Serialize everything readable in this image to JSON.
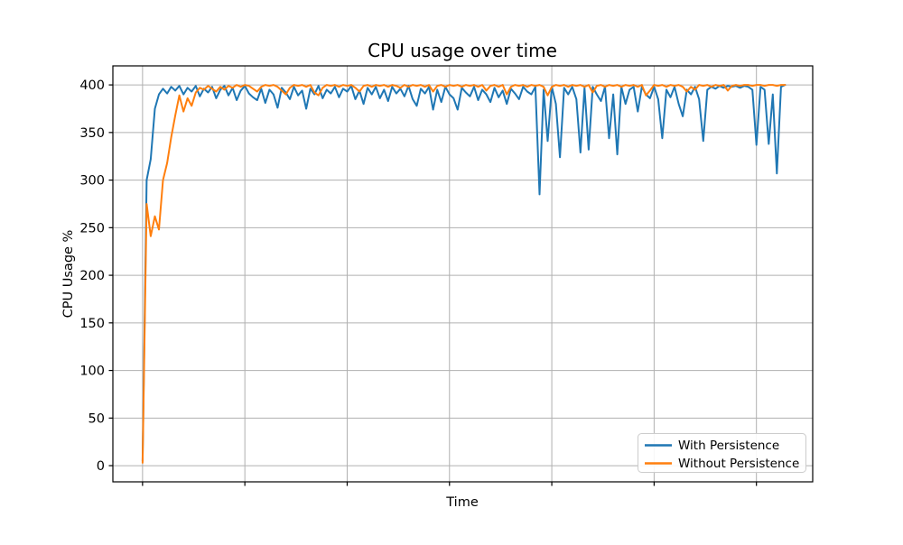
{
  "chart_data": {
    "type": "line",
    "title": "CPU usage over time",
    "xlabel": "Time",
    "ylabel": "CPU Usage %",
    "xlim": [
      -29,
      655
    ],
    "ylim": [
      -17,
      420
    ],
    "x_ticks": [
      0,
      100,
      200,
      300,
      400,
      500,
      600
    ],
    "x_tick_labels_visible": false,
    "y_ticks": [
      0,
      50,
      100,
      150,
      200,
      250,
      300,
      350,
      400
    ],
    "grid": true,
    "grid_color": "#b0b0b0",
    "axis_color": "#000000",
    "background_color": "#ffffff",
    "legend_position": "lower right",
    "legend_border_color": "#cccccc",
    "x_start": 0,
    "x_step": 4,
    "series": [
      {
        "name": "With Persistence",
        "color": "#1f77b4",
        "values": [
          5,
          300,
          322,
          375,
          390,
          396,
          391,
          398,
          394,
          399,
          390,
          397,
          393,
          399,
          388,
          396,
          392,
          398,
          386,
          395,
          399,
          389,
          397,
          384,
          394,
          399,
          391,
          387,
          384,
          396,
          381,
          395,
          390,
          376,
          397,
          392,
          385,
          398,
          389,
          394,
          375,
          396,
          390,
          399,
          386,
          395,
          391,
          398,
          387,
          396,
          393,
          399,
          385,
          394,
          380,
          397,
          390,
          398,
          386,
          395,
          383,
          398,
          391,
          396,
          388,
          399,
          385,
          378,
          396,
          391,
          398,
          374,
          395,
          382,
          398,
          390,
          386,
          374,
          397,
          392,
          388,
          398,
          384,
          395,
          390,
          382,
          397,
          387,
          394,
          380,
          396,
          391,
          385,
          398,
          393,
          390,
          398,
          285,
          395,
          341,
          398,
          380,
          324,
          397,
          390,
          398,
          385,
          329,
          397,
          332,
          398,
          390,
          383,
          398,
          344,
          390,
          327,
          398,
          380,
          395,
          398,
          372,
          398,
          390,
          386,
          398,
          385,
          344,
          395,
          387,
          398,
          380,
          367,
          395,
          390,
          398,
          385,
          341,
          395,
          398,
          396,
          399,
          397,
          399,
          398,
          399,
          397,
          399,
          398,
          395,
          337,
          398,
          395,
          338,
          390,
          307,
          398,
          400
        ]
      },
      {
        "name": "Without Persistence",
        "color": "#ff7f0e",
        "values": [
          3,
          275,
          241,
          262,
          248,
          300,
          318,
          345,
          368,
          389,
          372,
          386,
          378,
          392,
          397,
          395,
          399,
          396,
          393,
          398,
          395,
          399,
          397,
          400,
          398,
          400,
          399,
          396,
          393,
          398,
          400,
          399,
          400,
          398,
          394,
          390,
          397,
          400,
          399,
          400,
          398,
          400,
          392,
          389,
          397,
          400,
          399,
          400,
          398,
          400,
          399,
          400,
          397,
          393,
          399,
          400,
          398,
          400,
          399,
          400,
          398,
          400,
          399,
          397,
          400,
          398,
          400,
          399,
          400,
          398,
          400,
          393,
          399,
          400,
          398,
          400,
          399,
          400,
          398,
          400,
          399,
          400,
          398,
          400,
          394,
          399,
          400,
          398,
          400,
          390,
          398,
          400,
          399,
          400,
          398,
          400,
          399,
          400,
          398,
          389,
          398,
          400,
          399,
          400,
          398,
          400,
          399,
          400,
          398,
          400,
          392,
          399,
          400,
          398,
          400,
          399,
          400,
          398,
          400,
          399,
          400,
          398,
          400,
          389,
          394,
          400,
          399,
          400,
          398,
          400,
          399,
          400,
          398,
          393,
          398,
          395,
          400,
          399,
          400,
          398,
          400,
          399,
          400,
          394,
          399,
          400,
          399,
          400,
          400,
          399,
          400,
          400,
          399,
          400,
          400,
          399,
          400,
          400
        ]
      }
    ]
  }
}
